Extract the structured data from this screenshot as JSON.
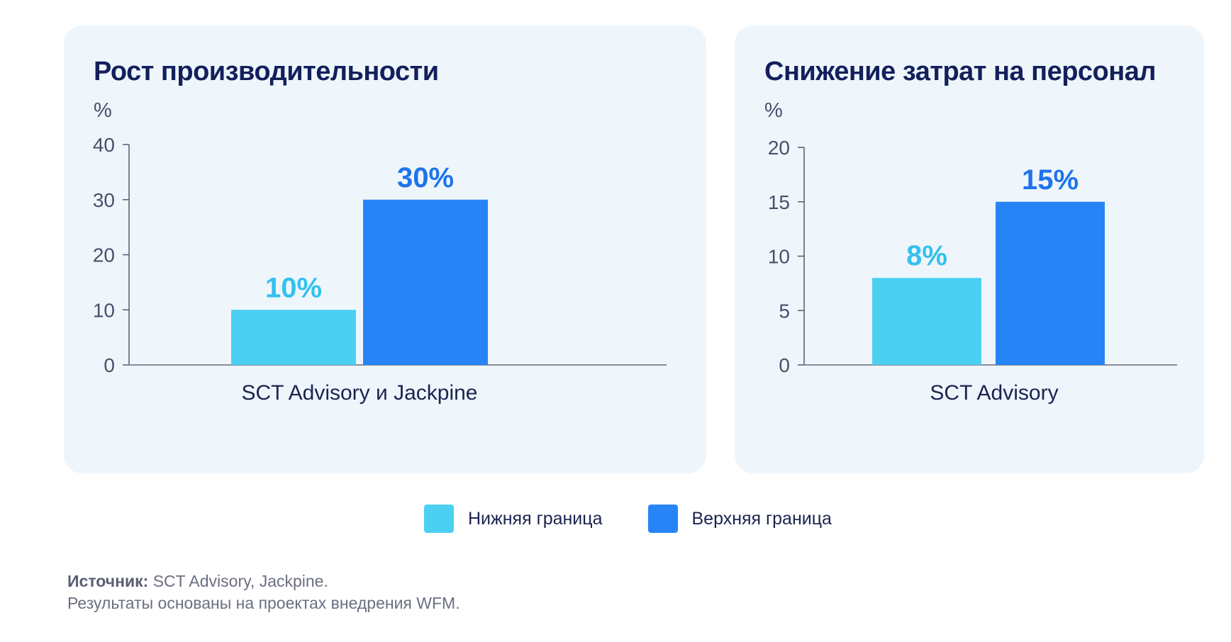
{
  "chart_data": [
    {
      "type": "bar",
      "title": "Рост производительности",
      "ylabel": "%",
      "categories": [
        "SCT Advisory и Jackpine"
      ],
      "series": [
        {
          "name": "Нижняя граница",
          "values": [
            10
          ],
          "label": "10%",
          "color": "#4cd0f2"
        },
        {
          "name": "Верхняя граница",
          "values": [
            30
          ],
          "label": "30%",
          "color": "#2684f7"
        }
      ],
      "ylim": [
        0,
        40
      ],
      "yticks": [
        "0",
        "10",
        "20",
        "30",
        "40"
      ],
      "grid": false
    },
    {
      "type": "bar",
      "title": "Снижение затрат на персонал",
      "ylabel": "%",
      "categories": [
        "SCT Advisory"
      ],
      "series": [
        {
          "name": "Нижняя граница",
          "values": [
            8
          ],
          "label": "8%",
          "color": "#4cd0f2"
        },
        {
          "name": "Верхняя граница",
          "values": [
            15
          ],
          "label": "15%",
          "color": "#2684f7"
        }
      ],
      "ylim": [
        0,
        20
      ],
      "yticks": [
        "0",
        "5",
        "10",
        "15",
        "20"
      ],
      "grid": false
    }
  ],
  "legend": {
    "placement": "bottom-center",
    "items": [
      {
        "label": "Нижняя граница",
        "color": "#4cd0f2"
      },
      {
        "label": "Верхняя граница",
        "color": "#2684f7"
      }
    ]
  },
  "source": {
    "prefix": "Источник:",
    "text": " SCT Advisory, Jackpine.",
    "note": "Результаты основаны на проектах внедрения WFM."
  },
  "colors": {
    "lower": "#4cd0f2",
    "upper": "#2684f7",
    "lower_label": "#33c1ee",
    "upper_label": "#1f74ea",
    "title": "#13205c",
    "card_bg": "#eef6fc"
  }
}
